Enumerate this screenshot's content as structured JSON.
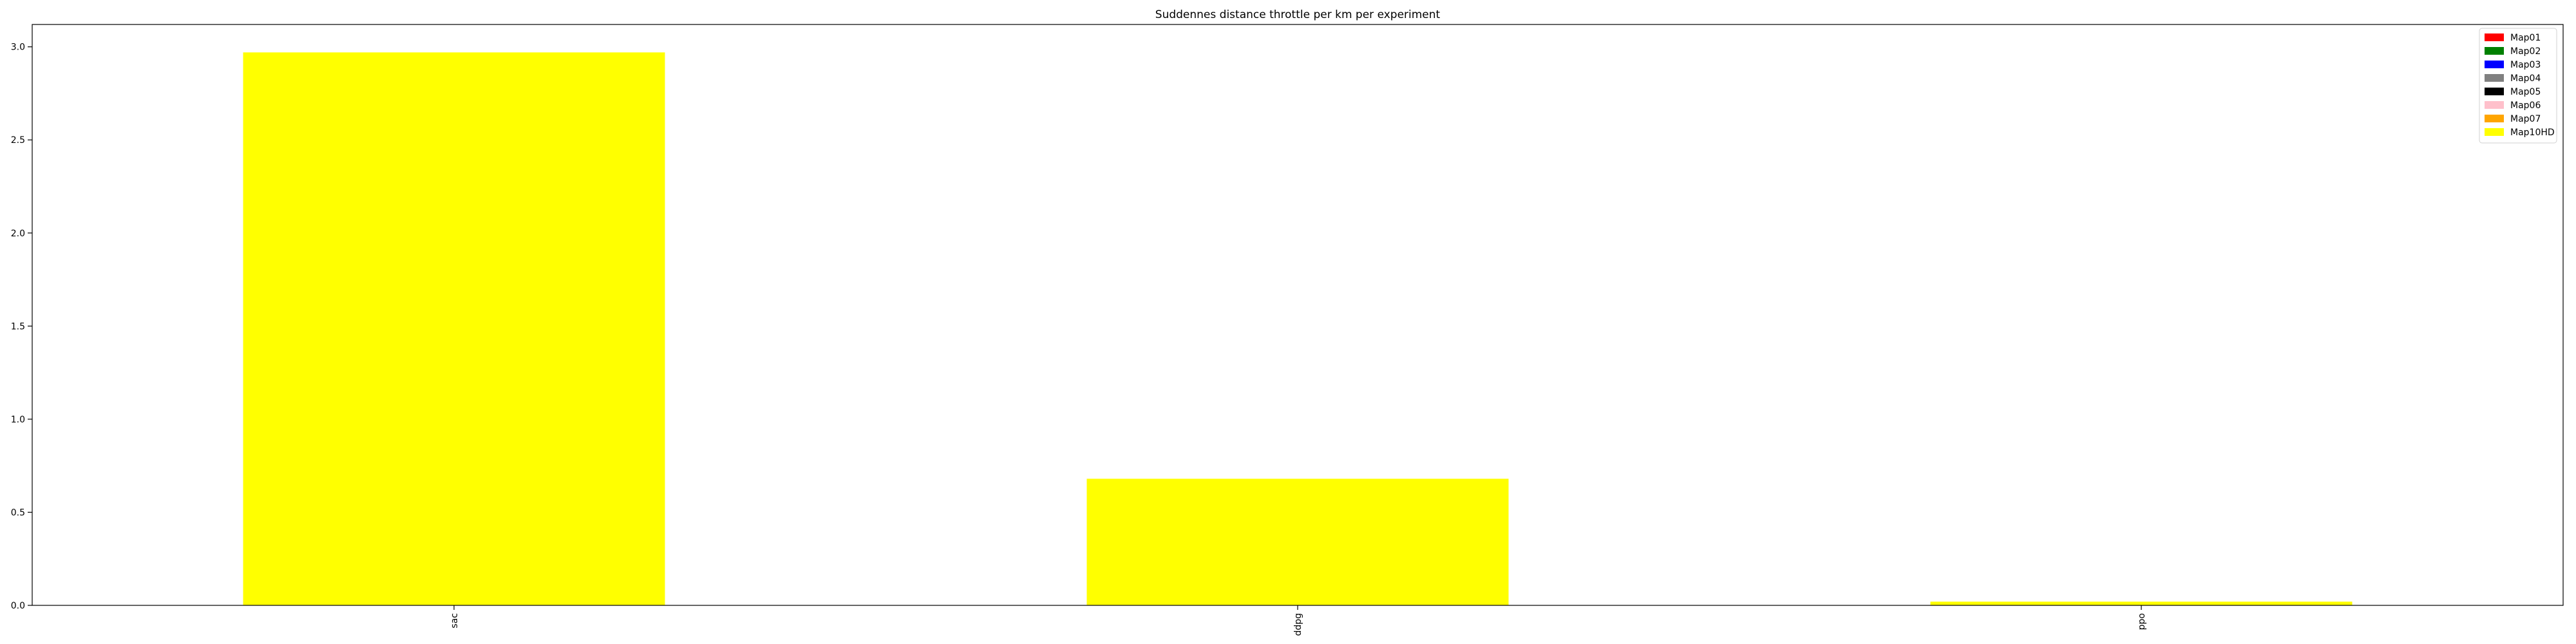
{
  "chart_data": {
    "type": "bar",
    "title": "Suddennes distance throttle per km per experiment",
    "xlabel": "",
    "ylabel": "",
    "categories": [
      "sac",
      "ddpg",
      "ppo"
    ],
    "series": [
      {
        "name": "Map01",
        "color": "#ff0000",
        "values": [
          0,
          0,
          0
        ]
      },
      {
        "name": "Map02",
        "color": "#008000",
        "values": [
          0,
          0,
          0
        ]
      },
      {
        "name": "Map03",
        "color": "#0000ff",
        "values": [
          0,
          0,
          0
        ]
      },
      {
        "name": "Map04",
        "color": "#808080",
        "values": [
          0,
          0,
          0
        ]
      },
      {
        "name": "Map05",
        "color": "#000000",
        "values": [
          0,
          0,
          0
        ]
      },
      {
        "name": "Map06",
        "color": "#ffc0cb",
        "values": [
          0,
          0,
          0
        ]
      },
      {
        "name": "Map07",
        "color": "#ffa500",
        "values": [
          0,
          0,
          0
        ]
      },
      {
        "name": "Map10HD",
        "color": "#ffff00",
        "values": [
          2.97,
          0.68,
          0.02
        ]
      }
    ],
    "ylim": [
      0,
      3.12
    ],
    "yticks": [
      0.0,
      0.5,
      1.0,
      1.5,
      2.0,
      2.5,
      3.0
    ],
    "ytick_labels": [
      "0.0",
      "0.5",
      "1.0",
      "1.5",
      "2.0",
      "2.5",
      "3.0"
    ],
    "stacked": true,
    "legend_position": "top-right",
    "grid": false
  }
}
